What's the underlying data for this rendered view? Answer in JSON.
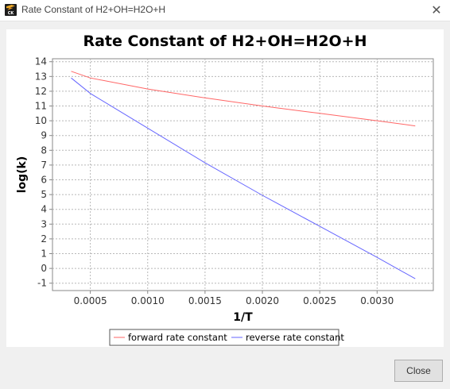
{
  "window": {
    "title": "Rate Constant of H2+OH=H2O+H",
    "app_icon_text": "CK",
    "close_icon": "close-icon",
    "close_glyph": "✕"
  },
  "footer": {
    "close_label": "Close"
  },
  "chart_data": {
    "type": "line",
    "title": "Rate Constant of H2+OH=H2O+H",
    "xlabel": "1/T",
    "ylabel": "log(k)",
    "xlim": [
      0.00017,
      0.00349
    ],
    "ylim": [
      -1.5,
      14.2
    ],
    "x_ticks": [
      0.0005,
      0.001,
      0.0015,
      0.002,
      0.0025,
      0.003
    ],
    "x_tick_labels": [
      "0.0005",
      "0.0010",
      "0.0015",
      "0.0020",
      "0.0025",
      "0.0030"
    ],
    "y_ticks": [
      -1,
      0,
      1,
      2,
      3,
      4,
      5,
      6,
      7,
      8,
      9,
      10,
      11,
      12,
      13,
      14
    ],
    "grid": true,
    "legend_position": "bottom-center",
    "series": [
      {
        "name": "forward rate constant",
        "color": "#ff6666",
        "x": [
          0.000333,
          0.0005,
          0.001,
          0.0015,
          0.002,
          0.0025,
          0.003,
          0.003333
        ],
        "y": [
          13.35,
          12.9,
          12.15,
          11.55,
          11.0,
          10.5,
          10.0,
          9.65
        ]
      },
      {
        "name": "reverse rate constant",
        "color": "#6666ff",
        "x": [
          0.000333,
          0.0005,
          0.001,
          0.0015,
          0.002,
          0.0025,
          0.003,
          0.003333
        ],
        "y": [
          12.9,
          11.85,
          9.5,
          7.15,
          4.95,
          2.85,
          0.75,
          -0.7
        ]
      }
    ]
  }
}
